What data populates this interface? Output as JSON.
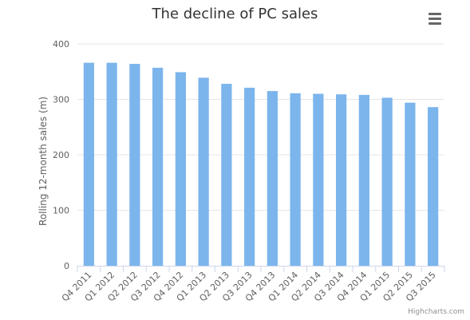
{
  "chart": {
    "title": "The decline of PC sales",
    "menu_icon": "hamburger-menu-icon",
    "credits": "Highcharts.com"
  },
  "chart_data": {
    "type": "bar",
    "title": "The decline of PC sales",
    "xlabel": "",
    "ylabel": "Rolling 12-month sales (m)",
    "categories": [
      "Q4 2011",
      "Q1 2012",
      "Q2 2012",
      "Q3 2012",
      "Q4 2012",
      "Q1 2013",
      "Q2 2013",
      "Q3 2013",
      "Q4 2013",
      "Q1 2014",
      "Q2 2014",
      "Q3 2014",
      "Q4 2014",
      "Q1 2015",
      "Q2 2015",
      "Q3 2015"
    ],
    "values": [
      366,
      366,
      364,
      357,
      349,
      339,
      328,
      321,
      315,
      311,
      310,
      309,
      308,
      303,
      294,
      286
    ],
    "ylim": [
      0,
      400
    ],
    "yticks": [
      0,
      100,
      200,
      300,
      400
    ],
    "grid": true,
    "legend": "none",
    "bar_color": "#7cb5ec",
    "grid_color": "#e6e6e6",
    "axis_color": "#ccd6eb",
    "label_color": "#606060"
  }
}
